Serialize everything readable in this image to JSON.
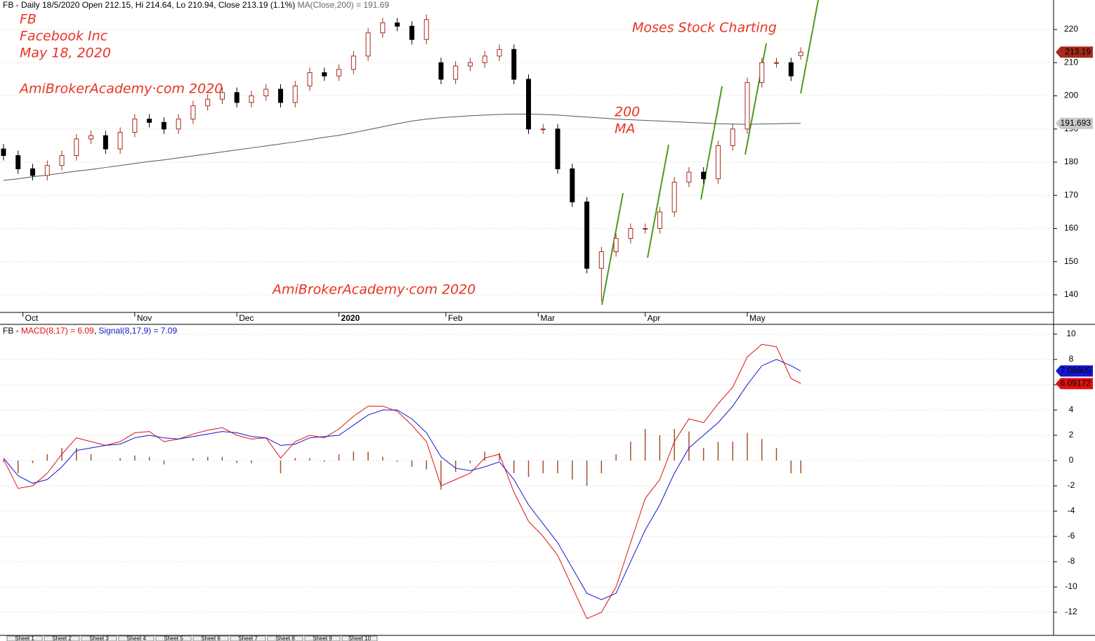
{
  "chart_data": [
    {
      "type": "candlestick",
      "title": "FB - Daily 18/5/2020 Open 212.15, Hi 214.64, Lo 210.94, Close 213.19 (1.1%)",
      "x": [
        0,
        3,
        6,
        9,
        12,
        15,
        18,
        21,
        24,
        27,
        30,
        33,
        36,
        39,
        42,
        45,
        48,
        51,
        54,
        57,
        60,
        63,
        66,
        69,
        72,
        75,
        78,
        81,
        84,
        87,
        90,
        93,
        96,
        99,
        102,
        105,
        108,
        111,
        114,
        117,
        120,
        123,
        126,
        129,
        132,
        135,
        138,
        141,
        144,
        147,
        150,
        153,
        156,
        159,
        162,
        164
      ],
      "open": [
        184,
        182,
        178,
        176,
        179,
        182,
        187,
        188,
        184,
        189,
        193,
        192,
        190,
        193,
        197,
        199,
        201,
        198,
        200,
        202,
        198,
        203,
        207,
        206,
        208,
        212,
        219,
        222,
        221,
        217,
        210,
        205,
        209,
        210,
        212,
        214,
        205,
        190,
        190,
        178,
        168,
        148,
        153,
        157,
        160,
        160,
        165,
        174,
        177,
        175,
        185,
        190,
        204,
        210,
        210,
        212.15
      ],
      "high": [
        185.5,
        183.5,
        179.5,
        180.5,
        183.5,
        188.5,
        189.5,
        189.5,
        190.5,
        194.5,
        194.5,
        193.5,
        194.5,
        198.5,
        200.5,
        202.5,
        202.5,
        201.5,
        203.5,
        203.5,
        204.5,
        208.5,
        208.5,
        209.5,
        213.5,
        220.5,
        223.5,
        223.5,
        222.5,
        224.5,
        211.5,
        210.5,
        211.5,
        213.5,
        215.5,
        215.5,
        206.5,
        191.5,
        191.5,
        179.5,
        169.5,
        154.5,
        158.5,
        161.5,
        161.5,
        166.5,
        175.5,
        178.5,
        178.5,
        186.5,
        191.5,
        205.5,
        211.5,
        211.5,
        211.5,
        214.64
      ],
      "low": [
        180.5,
        176.5,
        174.5,
        174.5,
        177.5,
        180.5,
        185.5,
        182.5,
        182.5,
        187.5,
        190.5,
        188.5,
        188.5,
        191.5,
        195.5,
        197.5,
        196.5,
        196.5,
        198.5,
        196.5,
        196.5,
        201.5,
        204.5,
        204.5,
        206.5,
        210.5,
        217.5,
        219.5,
        215.5,
        215.5,
        203.5,
        203.5,
        207.5,
        208.5,
        210.5,
        203.5,
        188.5,
        188.5,
        176.5,
        166.5,
        146.5,
        138,
        151.5,
        155.5,
        158.5,
        158.5,
        163.5,
        172.5,
        173.5,
        173.5,
        183.5,
        188.5,
        202.5,
        208.5,
        204.5,
        210.94
      ],
      "close": [
        182,
        178,
        176,
        179,
        182,
        187,
        188,
        184,
        189,
        193,
        192,
        190,
        193,
        197,
        199,
        201,
        198,
        200,
        202,
        198,
        203,
        207,
        206,
        208,
        212,
        219,
        222,
        221,
        217,
        223,
        205,
        209,
        210,
        212,
        214,
        205,
        190,
        190,
        178,
        168,
        148,
        153,
        157,
        160,
        160,
        165,
        174,
        177,
        175,
        185,
        190,
        204,
        210,
        210,
        206,
        213.19
      ],
      "up_color": "#a52a1a",
      "down_color": "#000000",
      "series": [
        {
          "name": "MA(Close,200) = 191.69",
          "color": "#555555",
          "values": [
            174.5,
            175.0,
            175.6,
            176.1,
            176.7,
            177.3,
            177.8,
            178.4,
            179.0,
            179.6,
            180.2,
            180.7,
            181.3,
            181.9,
            182.5,
            183.1,
            183.7,
            184.3,
            184.9,
            185.5,
            186.1,
            186.8,
            187.5,
            188.1,
            188.9,
            189.8,
            190.7,
            191.6,
            192.4,
            193.0,
            193.4,
            193.7,
            194.0,
            194.2,
            194.4,
            194.5,
            194.5,
            194.4,
            194.2,
            193.9,
            193.6,
            193.3,
            193.0,
            192.8,
            192.6,
            192.4,
            192.2,
            192.0,
            191.8,
            191.6,
            191.5,
            191.4,
            191.5,
            191.6,
            191.7,
            191.693
          ]
        }
      ],
      "xlim": [
        -0.72,
        216
      ],
      "xticks": [
        {
          "value": 4,
          "label": "Oct"
        },
        {
          "value": 27,
          "label": "Nov"
        },
        {
          "value": 48,
          "label": "Dec"
        },
        {
          "value": 69,
          "label": "2020"
        },
        {
          "value": 91,
          "label": "Feb"
        },
        {
          "value": 110,
          "label": "Mar"
        },
        {
          "value": 132,
          "label": "Apr"
        },
        {
          "value": 153,
          "label": "May"
        }
      ],
      "ylim": [
        134.7,
        228.9
      ],
      "yticks": [
        140,
        150,
        160,
        170,
        180,
        190,
        200,
        210,
        220
      ],
      "grid": true,
      "annotations": [
        "FB",
        "Facebook Inc",
        "May 18, 2020",
        "AmiBrokerAcademy·com 2020",
        "Moses Stock Charting",
        "200",
        "MA",
        "AmiBrokerAcademy·com  2020"
      ]
    },
    {
      "type": "macd",
      "title": "FB -",
      "x": [
        0,
        3,
        6,
        9,
        12,
        15,
        18,
        21,
        24,
        27,
        30,
        33,
        36,
        39,
        42,
        45,
        48,
        51,
        54,
        57,
        60,
        63,
        66,
        69,
        72,
        75,
        78,
        81,
        84,
        87,
        90,
        93,
        96,
        99,
        102,
        105,
        108,
        111,
        114,
        117,
        120,
        123,
        126,
        129,
        132,
        135,
        138,
        141,
        144,
        147,
        150,
        153,
        156,
        159,
        162,
        164
      ],
      "series": [
        {
          "name": "MACD(8,17) = 6.09",
          "color": "#e01010",
          "values": [
            0.1,
            -2.2,
            -2.0,
            -1.0,
            0.5,
            1.8,
            1.5,
            1.2,
            1.5,
            2.2,
            2.3,
            1.5,
            1.7,
            2.1,
            2.4,
            2.6,
            2.0,
            1.7,
            1.8,
            0.2,
            1.5,
            2.0,
            1.8,
            2.5,
            3.5,
            4.3,
            4.3,
            3.9,
            2.8,
            1.5,
            -2.0,
            -1.5,
            -1.0,
            0.2,
            0.5,
            -2.5,
            -4.8,
            -6.0,
            -7.5,
            -10.0,
            -12.5,
            -12.0,
            -10.0,
            -6.5,
            -3.0,
            -1.5,
            1.5,
            3.3,
            3.0,
            4.5,
            5.8,
            8.2,
            9.2,
            9.0,
            6.5,
            6.09172
          ]
        },
        {
          "name": "Signal(8,17,9) = 7.09",
          "color": "#1515d0",
          "values": [
            0.2,
            -1.2,
            -1.8,
            -1.5,
            -0.5,
            0.8,
            1.0,
            1.2,
            1.3,
            1.8,
            2.0,
            1.8,
            1.7,
            1.9,
            2.1,
            2.3,
            2.2,
            1.9,
            1.8,
            1.2,
            1.3,
            1.8,
            1.9,
            2.0,
            2.8,
            3.6,
            4.0,
            4.0,
            3.3,
            2.2,
            0.3,
            -0.6,
            -0.8,
            -0.5,
            -0.1,
            -1.5,
            -3.5,
            -5.0,
            -6.5,
            -8.5,
            -10.5,
            -11.0,
            -10.5,
            -8.0,
            -5.5,
            -3.5,
            -1.0,
            1.0,
            2.0,
            3.0,
            4.3,
            6.0,
            7.5,
            8.0,
            7.5,
            7.08605
          ]
        }
      ],
      "histogram_color": "#a0522d",
      "histogram_values": [
        -0.1,
        -1.0,
        -0.2,
        0.5,
        1.0,
        1.0,
        0.5,
        0.0,
        0.2,
        0.4,
        0.3,
        -0.3,
        0.0,
        0.2,
        0.3,
        0.3,
        -0.2,
        -0.2,
        0.0,
        -1.0,
        0.2,
        0.2,
        -0.1,
        0.5,
        0.7,
        0.7,
        0.3,
        -0.1,
        -0.5,
        -0.7,
        -2.3,
        -0.9,
        -0.2,
        0.7,
        0.6,
        -1.0,
        -1.3,
        -1.0,
        -1.0,
        -1.5,
        -2.0,
        -1.0,
        0.5,
        1.5,
        2.5,
        2.0,
        2.5,
        2.3,
        1.0,
        1.5,
        1.5,
        2.2,
        1.7,
        1.0,
        -1.0,
        -1.0
      ],
      "xlim": [
        -0.72,
        216
      ],
      "ylim": [
        -13.83,
        10.72
      ],
      "yticks": [
        -12,
        -10,
        -8,
        -6,
        -4,
        -2,
        0,
        2,
        4,
        6,
        8,
        10
      ],
      "grid": true
    }
  ],
  "tabs": [
    "Sheet 1",
    "Sheet 2",
    "Sheet 3",
    "Sheet 4",
    "Sheet 5",
    "Sheet 6",
    "Sheet 7",
    "Sheet 8",
    "Sheet 9",
    "Sheet 10"
  ]
}
